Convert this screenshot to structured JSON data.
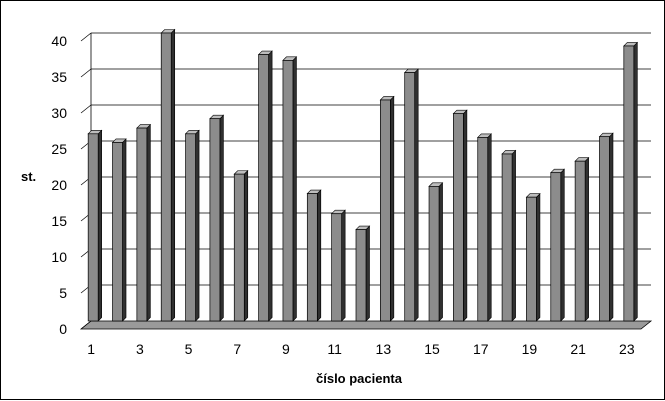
{
  "chart_data": {
    "type": "bar",
    "style": "3d-column",
    "xlabel": "číslo pacienta",
    "ylabel": "st.",
    "ylim": [
      0,
      40
    ],
    "y_ticks": [
      0,
      5,
      10,
      15,
      20,
      25,
      30,
      35,
      40
    ],
    "categories": [
      "1",
      "2",
      "3",
      "4",
      "5",
      "6",
      "7",
      "8",
      "9",
      "10",
      "11",
      "12",
      "13",
      "14",
      "15",
      "16",
      "17",
      "18",
      "19",
      "20",
      "21",
      "22",
      "23"
    ],
    "x_tick_labels": [
      "1",
      "3",
      "5",
      "7",
      "9",
      "11",
      "13",
      "15",
      "17",
      "19",
      "21",
      "23"
    ],
    "values": [
      26,
      24.8,
      26.8,
      40,
      26,
      28.1,
      20.4,
      37,
      36.2,
      17.7,
      14.9,
      12.7,
      30.7,
      34.5,
      18.7,
      28.8,
      25.5,
      23.2,
      17.2,
      20.6,
      22.2,
      25.6,
      38.2
    ],
    "grid": "horizontal",
    "colors": {
      "bar_face": "#8c8c8c",
      "bar_side": "#303030",
      "bar_top": "#bdbdbd",
      "wall": "#ffffff",
      "gridline": "#000000"
    }
  }
}
